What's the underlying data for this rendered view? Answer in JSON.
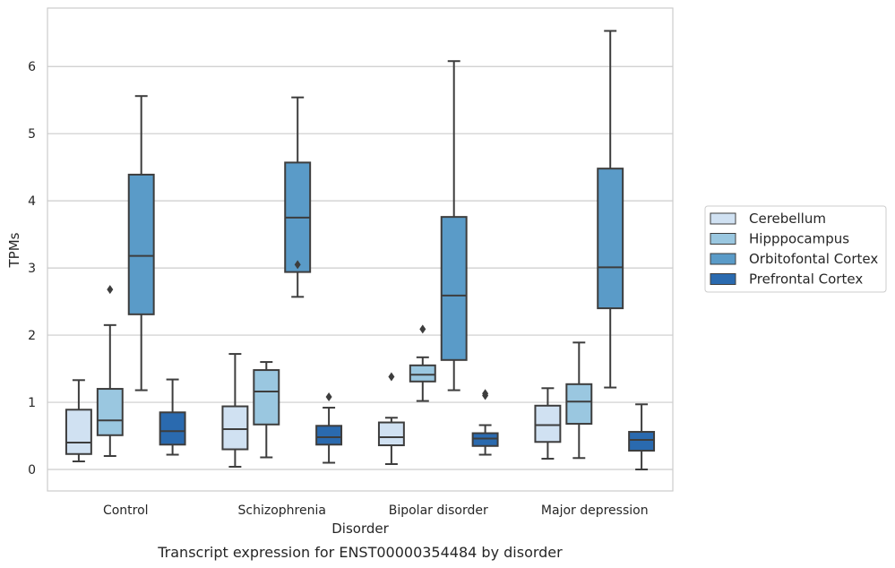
{
  "caption": "Transcript expression for ENST00000354484 by disorder",
  "chart_data": {
    "type": "box",
    "title": "",
    "xlabel": "Disorder",
    "ylabel": "TPMs",
    "ylim": [
      -0.32,
      6.87
    ],
    "yticks": [
      0,
      1,
      2,
      3,
      4,
      5,
      6
    ],
    "grid": "horizontal",
    "legend_position": "right",
    "categories": [
      "Control",
      "Schizophrenia",
      "Bipolar disorder",
      "Major depression"
    ],
    "series": [
      {
        "name": "Cerebellum",
        "color": "#d0e1f2",
        "boxes": [
          {
            "whisker_low": 0.12,
            "q1": 0.23,
            "median": 0.4,
            "q3": 0.89,
            "whisker_high": 1.33,
            "outliers": []
          },
          {
            "whisker_low": 0.04,
            "q1": 0.3,
            "median": 0.6,
            "q3": 0.94,
            "whisker_high": 1.72,
            "outliers": []
          },
          {
            "whisker_low": 0.08,
            "q1": 0.36,
            "median": 0.48,
            "q3": 0.7,
            "whisker_high": 0.77,
            "outliers": [
              1.38
            ]
          },
          {
            "whisker_low": 0.16,
            "q1": 0.41,
            "median": 0.66,
            "q3": 0.95,
            "whisker_high": 1.21,
            "outliers": []
          }
        ]
      },
      {
        "name": "Hipppocampus",
        "color": "#9ac7e0",
        "boxes": [
          {
            "whisker_low": 0.2,
            "q1": 0.51,
            "median": 0.73,
            "q3": 1.2,
            "whisker_high": 2.15,
            "outliers": [
              2.68
            ]
          },
          {
            "whisker_low": 0.18,
            "q1": 0.67,
            "median": 1.16,
            "q3": 1.48,
            "whisker_high": 1.6,
            "outliers": []
          },
          {
            "whisker_low": 1.02,
            "q1": 1.31,
            "median": 1.41,
            "q3": 1.55,
            "whisker_high": 1.67,
            "outliers": [
              2.09
            ]
          },
          {
            "whisker_low": 0.17,
            "q1": 0.68,
            "median": 1.01,
            "q3": 1.27,
            "whisker_high": 1.89,
            "outliers": []
          }
        ]
      },
      {
        "name": "Orbitofontal Cortex",
        "color": "#5a9bc8",
        "boxes": [
          {
            "whisker_low": 1.18,
            "q1": 2.31,
            "median": 3.18,
            "q3": 4.39,
            "whisker_high": 5.56,
            "outliers": []
          },
          {
            "whisker_low": 2.57,
            "q1": 2.94,
            "median": 3.75,
            "q3": 4.57,
            "whisker_high": 5.54,
            "outliers": [
              3.05
            ]
          },
          {
            "whisker_low": 1.18,
            "q1": 1.63,
            "median": 2.59,
            "q3": 3.76,
            "whisker_high": 6.08,
            "outliers": []
          },
          {
            "whisker_low": 1.22,
            "q1": 2.4,
            "median": 3.01,
            "q3": 4.48,
            "whisker_high": 6.53,
            "outliers": []
          }
        ]
      },
      {
        "name": "Prefrontal Cortex",
        "color": "#2a6aaf",
        "boxes": [
          {
            "whisker_low": 0.22,
            "q1": 0.37,
            "median": 0.57,
            "q3": 0.85,
            "whisker_high": 1.34,
            "outliers": []
          },
          {
            "whisker_low": 0.1,
            "q1": 0.37,
            "median": 0.48,
            "q3": 0.65,
            "whisker_high": 0.92,
            "outliers": [
              1.08
            ]
          },
          {
            "whisker_low": 0.22,
            "q1": 0.35,
            "median": 0.46,
            "q3": 0.54,
            "whisker_high": 0.66,
            "outliers": [
              1.1,
              1.13
            ]
          },
          {
            "whisker_low": 0.0,
            "q1": 0.28,
            "median": 0.44,
            "q3": 0.56,
            "whisker_high": 0.97,
            "outliers": []
          }
        ]
      }
    ]
  }
}
